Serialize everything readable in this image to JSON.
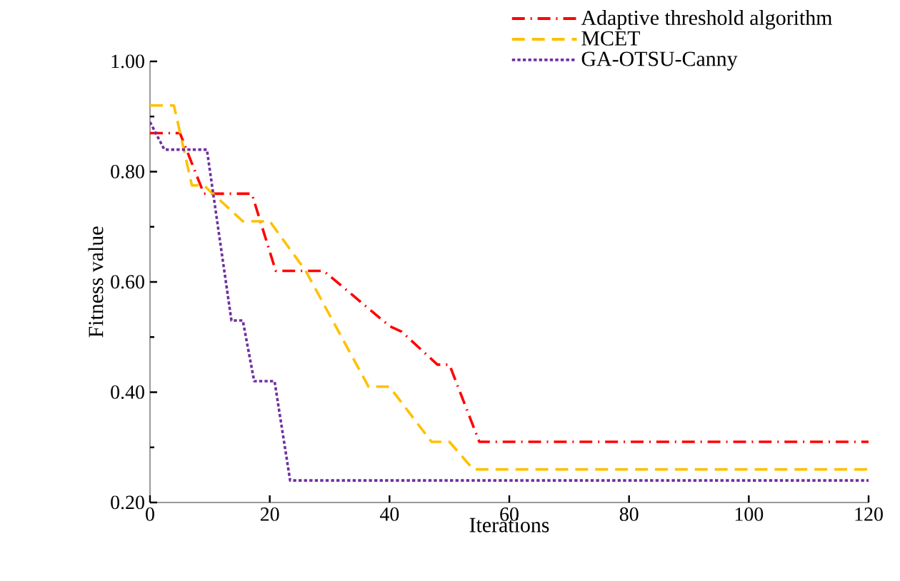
{
  "chart_data": {
    "type": "line",
    "xlabel": "Iterations",
    "ylabel": "Fitness value",
    "xlim": [
      0,
      120
    ],
    "ylim": [
      0.2,
      1.0
    ],
    "xticks": [
      0,
      20,
      40,
      60,
      80,
      100,
      120
    ],
    "yticks": [
      {
        "value": 0.2,
        "label": "0.20"
      },
      {
        "value": 0.4,
        "label": "0.40"
      },
      {
        "value": 0.6,
        "label": "0.60"
      },
      {
        "value": 0.8,
        "label": "0.80"
      },
      {
        "value": 1.0,
        "label": "1.00"
      }
    ],
    "legend": "top right",
    "grid": false,
    "marker": "none",
    "series": [
      {
        "name": "Adaptive threshold algorithm",
        "color": "#ff0000",
        "line_style": "dashdotted",
        "x": [
          0,
          5,
          9,
          17,
          21,
          29,
          40,
          42,
          48,
          50,
          55,
          120
        ],
        "values": [
          0.87,
          0.87,
          0.76,
          0.76,
          0.62,
          0.62,
          0.52,
          0.51,
          0.45,
          0.45,
          0.31,
          0.31
        ]
      },
      {
        "name": "MCET",
        "color": "#ffc000",
        "line_style": "dashed",
        "x": [
          0,
          4,
          7,
          9,
          15.5,
          20,
          26,
          36.5,
          40,
          47,
          50,
          54,
          120
        ],
        "values": [
          0.92,
          0.92,
          0.775,
          0.775,
          0.71,
          0.71,
          0.62,
          0.41,
          0.41,
          0.31,
          0.31,
          0.26,
          0.26
        ]
      },
      {
        "name": "GA-OTSU-Canny",
        "color": "#7030a0",
        "line_style": "dotted",
        "x": [
          0,
          2.4,
          9.5,
          13.6,
          15.5,
          17.4,
          20.8,
          23.4,
          120
        ],
        "values": [
          0.89,
          0.84,
          0.84,
          0.53,
          0.53,
          0.42,
          0.42,
          0.24,
          0.24
        ]
      }
    ]
  }
}
